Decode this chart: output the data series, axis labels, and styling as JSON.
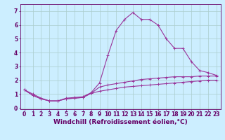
{
  "xlabel": "Windchill (Refroidissement éolien,°C)",
  "background_color": "#cceeff",
  "grid_color": "#aacccc",
  "line_color": "#993399",
  "xlim": [
    -0.5,
    23.5
  ],
  "ylim": [
    -0.1,
    7.5
  ],
  "xticks": [
    0,
    1,
    2,
    3,
    4,
    5,
    6,
    7,
    8,
    9,
    10,
    11,
    12,
    13,
    14,
    15,
    16,
    17,
    18,
    19,
    20,
    21,
    22,
    23
  ],
  "yticks": [
    0,
    1,
    2,
    3,
    4,
    5,
    6,
    7
  ],
  "line1_x": [
    0,
    1,
    2,
    3,
    4,
    5,
    6,
    7,
    8,
    9,
    10,
    11,
    12,
    13,
    14,
    15,
    16,
    17,
    18,
    19,
    20,
    21,
    22,
    23
  ],
  "line1_y": [
    1.3,
    1.0,
    0.7,
    0.5,
    0.5,
    0.7,
    0.75,
    0.8,
    1.1,
    1.8,
    3.8,
    5.6,
    6.4,
    6.9,
    6.4,
    6.4,
    6.0,
    5.0,
    4.3,
    4.3,
    3.35,
    2.7,
    2.55,
    2.35
  ],
  "line2_x": [
    0,
    1,
    2,
    3,
    4,
    5,
    6,
    7,
    8,
    9,
    10,
    11,
    12,
    13,
    14,
    15,
    16,
    17,
    18,
    19,
    20,
    21,
    22,
    23
  ],
  "line2_y": [
    1.3,
    0.9,
    0.65,
    0.5,
    0.5,
    0.65,
    0.7,
    0.75,
    1.05,
    1.5,
    1.65,
    1.75,
    1.85,
    1.95,
    2.05,
    2.1,
    2.15,
    2.2,
    2.25,
    2.25,
    2.25,
    2.3,
    2.3,
    2.3
  ],
  "line3_x": [
    0,
    1,
    2,
    3,
    4,
    5,
    6,
    7,
    8,
    9,
    10,
    11,
    12,
    13,
    14,
    15,
    16,
    17,
    18,
    19,
    20,
    21,
    22,
    23
  ],
  "line3_y": [
    1.3,
    0.9,
    0.65,
    0.5,
    0.5,
    0.65,
    0.7,
    0.75,
    1.05,
    1.2,
    1.3,
    1.4,
    1.5,
    1.55,
    1.6,
    1.65,
    1.7,
    1.75,
    1.8,
    1.85,
    1.9,
    1.95,
    2.0,
    2.0
  ],
  "tick_fontsize": 5.5,
  "xlabel_fontsize": 6.5,
  "axis_color": "#660066"
}
